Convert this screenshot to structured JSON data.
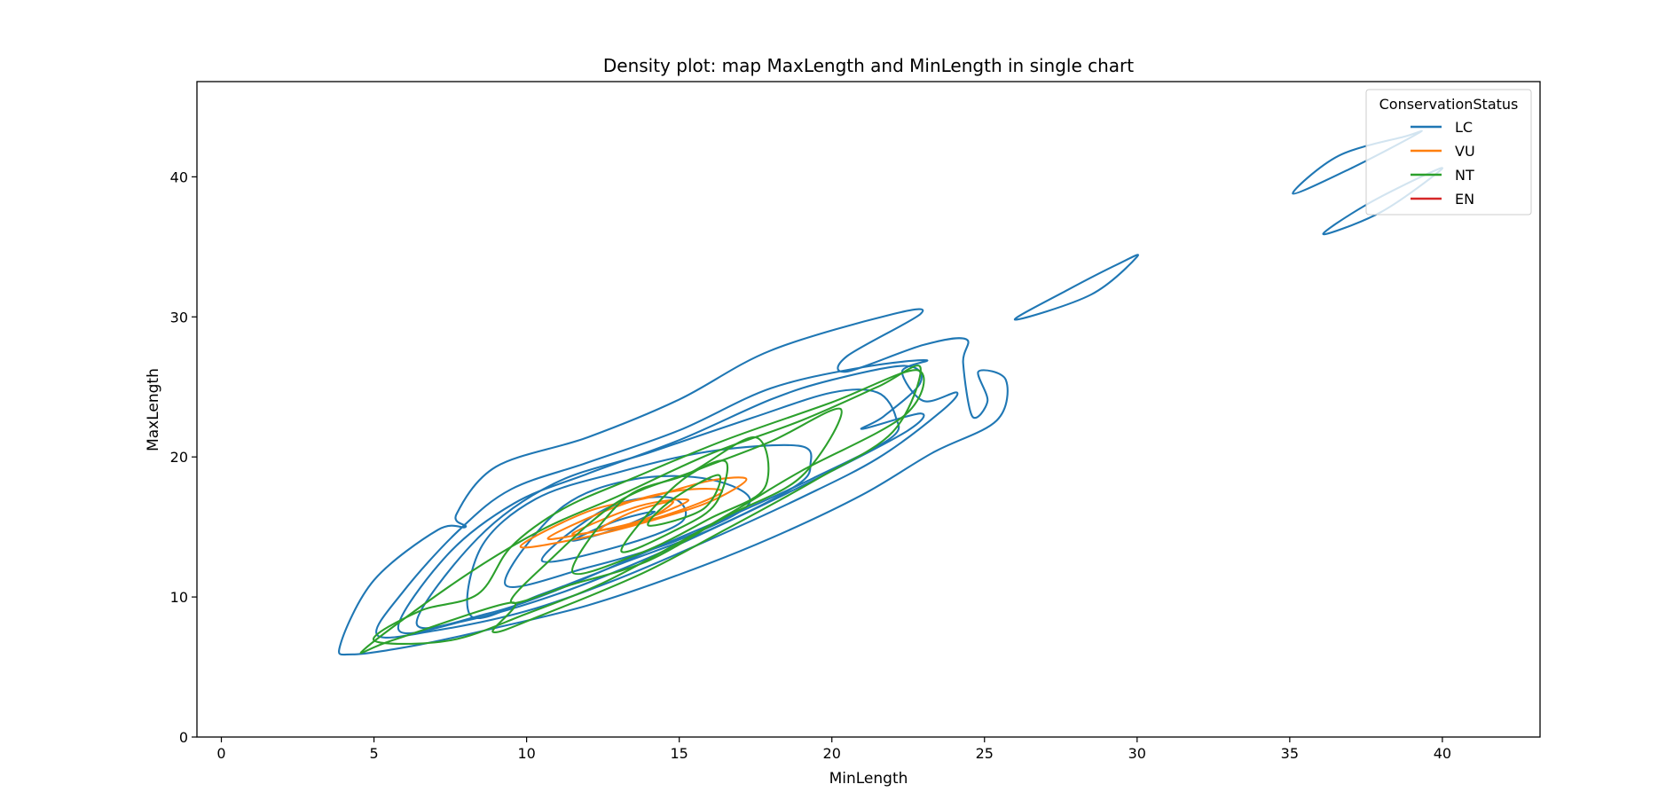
{
  "chart_data": {
    "type": "density-contour",
    "title": "Density plot: map MaxLength and MinLength in single chart",
    "xlabel": "MinLength",
    "ylabel": "MaxLength",
    "xlim": [
      -0.8,
      43.2
    ],
    "ylim": [
      0,
      46.8
    ],
    "x_ticks": [
      0,
      5,
      10,
      15,
      20,
      25,
      30,
      35,
      40
    ],
    "y_ticks": [
      0,
      10,
      20,
      30,
      40
    ],
    "grid": false,
    "legend": {
      "title": "ConservationStatus",
      "placement": "top-right",
      "entries": [
        {
          "label": "LC",
          "color": "#1f77b4"
        },
        {
          "label": "VU",
          "color": "#ff7f0e"
        },
        {
          "label": "NT",
          "color": "#2ca02c"
        },
        {
          "label": "EN",
          "color": "#d62728"
        }
      ]
    },
    "series": [
      {
        "name": "LC",
        "color": "#1f77b4",
        "contours": [
          [
            [
              4.3,
              5.9
            ],
            [
              6.5,
              6.6
            ],
            [
              9,
              7.8
            ],
            [
              12,
              9.4
            ],
            [
              15,
              11.6
            ],
            [
              18,
              14.2
            ],
            [
              21,
              17.3
            ],
            [
              23.3,
              20.3
            ],
            [
              25.4,
              22.6
            ],
            [
              25.7,
              25.5
            ],
            [
              24.8,
              26.1
            ],
            [
              25.1,
              24
            ],
            [
              24.6,
              22.9
            ],
            [
              24.3,
              26.7
            ],
            [
              24.4,
              28.4
            ],
            [
              23,
              28
            ],
            [
              20.5,
              26.1
            ],
            [
              20.5,
              27.2
            ],
            [
              22.9,
              30.2
            ],
            [
              22,
              30.2
            ],
            [
              18,
              27.6
            ],
            [
              15,
              24.1
            ],
            [
              12,
              21.4
            ],
            [
              9,
              19.3
            ],
            [
              7.7,
              15.9
            ],
            [
              8,
              15
            ],
            [
              7.1,
              14.8
            ],
            [
              5,
              11.2
            ],
            [
              3.9,
              6.6
            ],
            [
              4.3,
              5.9
            ]
          ],
          [
            [
              5.1,
              7.3
            ],
            [
              7,
              7.6
            ],
            [
              10,
              9
            ],
            [
              13,
              11.3
            ],
            [
              16,
              14.1
            ],
            [
              19,
              17.1
            ],
            [
              21.5,
              19.9
            ],
            [
              23.5,
              23.1
            ],
            [
              24.1,
              24.6
            ],
            [
              23,
              24
            ],
            [
              22.3,
              26.1
            ],
            [
              23.1,
              26.9
            ],
            [
              21,
              26.4
            ],
            [
              18,
              24.9
            ],
            [
              15,
              21.9
            ],
            [
              12,
              19.6
            ],
            [
              9.5,
              17.7
            ],
            [
              7.8,
              14.8
            ],
            [
              6,
              10.5
            ],
            [
              5.1,
              7.3
            ]
          ],
          [
            [
              5.8,
              7.7
            ],
            [
              8,
              8.3
            ],
            [
              11,
              10.2
            ],
            [
              14,
              12.8
            ],
            [
              17,
              15.8
            ],
            [
              20,
              19
            ],
            [
              22.5,
              21.9
            ],
            [
              22.9,
              23.1
            ],
            [
              21,
              22
            ],
            [
              21.7,
              22.9
            ],
            [
              22.9,
              25.3
            ],
            [
              22.4,
              26.5
            ],
            [
              20,
              25.5
            ],
            [
              18,
              24.1
            ],
            [
              15,
              21.2
            ],
            [
              12,
              18.8
            ],
            [
              9.6,
              16.7
            ],
            [
              7.4,
              13
            ],
            [
              5.8,
              7.7
            ]
          ],
          [
            [
              6.4,
              8.1
            ],
            [
              8.7,
              8.8
            ],
            [
              11,
              10.5
            ],
            [
              14,
              13.3
            ],
            [
              17,
              16.1
            ],
            [
              19.4,
              18.5
            ],
            [
              21.9,
              21.3
            ],
            [
              22.1,
              22.8
            ],
            [
              21.5,
              24.6
            ],
            [
              20,
              24.6
            ],
            [
              17.4,
              22.8
            ],
            [
              14,
              20.3
            ],
            [
              10.9,
              18.1
            ],
            [
              8.4,
              14.2
            ],
            [
              6.4,
              8.1
            ]
          ],
          [
            [
              8.2,
              8.6
            ],
            [
              10.5,
              10.2
            ],
            [
              13,
              12.3
            ],
            [
              16,
              14.8
            ],
            [
              18.8,
              17.9
            ],
            [
              19.3,
              19.5
            ],
            [
              18.9,
              20.8
            ],
            [
              16,
              20.4
            ],
            [
              13,
              18.9
            ],
            [
              10.3,
              17
            ],
            [
              8.5,
              13.5
            ],
            [
              8.2,
              8.6
            ]
          ],
          [
            [
              9.3,
              10.9
            ],
            [
              12,
              12.1
            ],
            [
              15,
              14.1
            ],
            [
              17.3,
              16.7
            ],
            [
              16,
              18.4
            ],
            [
              13.5,
              18.4
            ],
            [
              11.1,
              16.3
            ],
            [
              9.3,
              10.9
            ]
          ],
          [
            [
              10.5,
              12.6
            ],
            [
              13,
              13.6
            ],
            [
              15.1,
              15.4
            ],
            [
              14.7,
              17.1
            ],
            [
              12.6,
              16.3
            ],
            [
              10.5,
              12.6
            ]
          ],
          [
            [
              11.5,
              14
            ],
            [
              13,
              14.9
            ],
            [
              14.2,
              16.1
            ],
            [
              12.9,
              15.4
            ],
            [
              11.5,
              14
            ]
          ],
          [
            [
              26,
              29.8
            ],
            [
              28.5,
              31.6
            ],
            [
              30,
              34.3
            ],
            [
              29.4,
              33.8
            ],
            [
              27.7,
              31.9
            ],
            [
              26,
              29.8
            ]
          ],
          [
            [
              35.1,
              38.8
            ],
            [
              37,
              40.6
            ],
            [
              39.2,
              43.1
            ],
            [
              38.8,
              42.9
            ],
            [
              36.6,
              41.5
            ],
            [
              35.1,
              38.8
            ]
          ],
          [
            [
              36.1,
              35.9
            ],
            [
              38,
              37.5
            ],
            [
              39.9,
              40.4
            ],
            [
              39.5,
              40.2
            ],
            [
              37.5,
              38
            ],
            [
              36.1,
              35.9
            ]
          ]
        ]
      },
      {
        "name": "VU",
        "color": "#ff7f0e",
        "contours": [
          [
            [
              9.8,
              13.6
            ],
            [
              12,
              14.3
            ],
            [
              14,
              15.4
            ],
            [
              16,
              16.8
            ],
            [
              17.2,
              18.4
            ],
            [
              16,
              18.3
            ],
            [
              14,
              17.1
            ],
            [
              12,
              16.1
            ],
            [
              9.8,
              13.6
            ]
          ],
          [
            [
              10.7,
              14.2
            ],
            [
              12.5,
              14.8
            ],
            [
              14.5,
              15.8
            ],
            [
              16.4,
              17.5
            ],
            [
              15,
              17.6
            ],
            [
              13,
              16.5
            ],
            [
              10.7,
              14.2
            ]
          ],
          [
            [
              11.5,
              14.5
            ],
            [
              13.5,
              15.3
            ],
            [
              15.3,
              16.9
            ],
            [
              13.7,
              16.5
            ],
            [
              11.5,
              14.5
            ]
          ],
          [
            [
              12.4,
              14.8
            ],
            [
              13.8,
              15.4
            ],
            [
              14.8,
              16.8
            ],
            [
              13.5,
              16.1
            ],
            [
              12.4,
              14.8
            ]
          ]
        ]
      },
      {
        "name": "NT",
        "color": "#2ca02c",
        "contours": [
          [
            [
              4.7,
              6.3
            ],
            [
              5.6,
              6.9
            ],
            [
              9.5,
              9.6
            ],
            [
              8.9,
              7.5
            ],
            [
              10.5,
              8.7
            ],
            [
              13.8,
              11.7
            ],
            [
              16.5,
              14.8
            ],
            [
              19.5,
              18.4
            ],
            [
              22,
              21.8
            ],
            [
              22.9,
              26.4
            ],
            [
              21.5,
              25
            ],
            [
              19,
              22.6
            ],
            [
              16,
              20.2
            ],
            [
              13,
              17.2
            ],
            [
              10.5,
              14.8
            ],
            [
              7.9,
              11.4
            ],
            [
              4.7,
              6.3
            ]
          ],
          [
            [
              7.5,
              6.9
            ],
            [
              10,
              8.8
            ],
            [
              12.5,
              11
            ],
            [
              15,
              13.9
            ],
            [
              17,
              16.4
            ],
            [
              19,
              19
            ],
            [
              22.4,
              23
            ],
            [
              22.8,
              26.2
            ],
            [
              20,
              23.9
            ],
            [
              16.5,
              21.2
            ],
            [
              13.5,
              18.5
            ],
            [
              11.2,
              16.3
            ],
            [
              9.5,
              13.6
            ],
            [
              8.4,
              10.2
            ],
            [
              6.5,
              9
            ],
            [
              5,
              6.9
            ],
            [
              7.5,
              6.9
            ]
          ],
          [
            [
              9.5,
              9.6
            ],
            [
              11.5,
              10.9
            ],
            [
              14,
              12.6
            ],
            [
              16.5,
              15.7
            ],
            [
              19,
              18.6
            ],
            [
              20.3,
              23.4
            ],
            [
              18,
              21.1
            ],
            [
              15.5,
              19
            ],
            [
              13,
              16.8
            ],
            [
              10.7,
              12.5
            ],
            [
              9.5,
              9.6
            ]
          ],
          [
            [
              11.5,
              11.8
            ],
            [
              13.8,
              13.2
            ],
            [
              16,
              15.6
            ],
            [
              17.8,
              17.8
            ],
            [
              17.5,
              21.4
            ],
            [
              15.3,
              18.8
            ],
            [
              13.2,
              17
            ],
            [
              11.5,
              11.8
            ]
          ],
          [
            [
              13.1,
              13.3
            ],
            [
              15,
              14.9
            ],
            [
              16.2,
              16.7
            ],
            [
              16.5,
              19.7
            ],
            [
              14.9,
              18
            ],
            [
              13.1,
              13.3
            ]
          ],
          [
            [
              14,
              15.1
            ],
            [
              15.8,
              16.3
            ],
            [
              16.3,
              18.7
            ],
            [
              14.8,
              17
            ],
            [
              14,
              15.1
            ]
          ]
        ]
      },
      {
        "name": "EN",
        "color": "#d62728",
        "contours": []
      }
    ]
  }
}
